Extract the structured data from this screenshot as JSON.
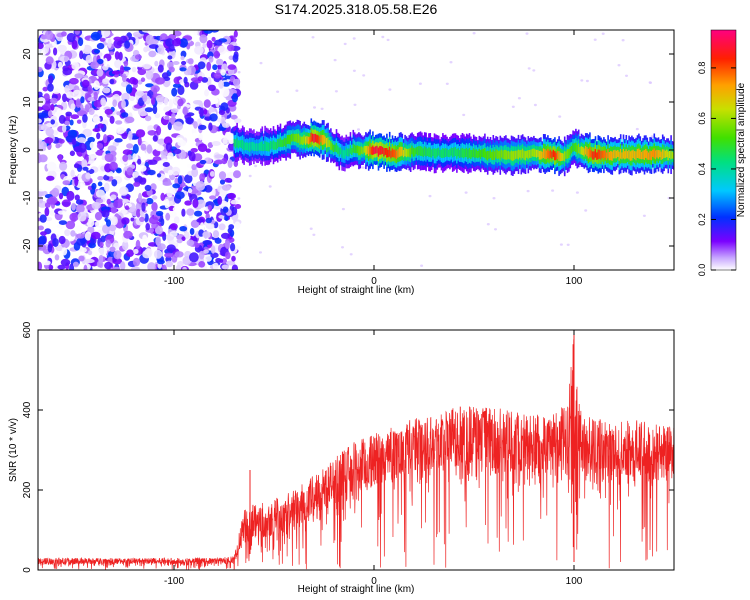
{
  "title": "S174.2025.318.05.58.E26",
  "chart_data": [
    {
      "type": "heatmap",
      "title": "",
      "xlabel": "Height of straight line (km)",
      "ylabel": "Frequency (Hz)",
      "xlim": [
        -168,
        150
      ],
      "ylim": [
        -25,
        25
      ],
      "xticks": [
        "-100",
        "0",
        "100"
      ],
      "xtick_values": [
        -100,
        0,
        100
      ],
      "yticks": [
        "20",
        "10",
        "0",
        "-10",
        "-20"
      ],
      "ytick_values": [
        20,
        10,
        0,
        -10,
        -20
      ],
      "colorbar": {
        "label": "Normalized spectral amplitude",
        "range": [
          0.0,
          0.95
        ],
        "ticks": [
          "0.0",
          "0.2",
          "0.4",
          "0.6",
          "0.8"
        ],
        "tick_values": [
          0.0,
          0.2,
          0.4,
          0.6,
          0.8
        ]
      },
      "noise_region_x": [
        -168,
        -68
      ],
      "signal_trace": {
        "x": [
          -70,
          -60,
          -50,
          -40,
          -35,
          -30,
          -25,
          -20,
          -15,
          -10,
          -5,
          0,
          10,
          20,
          30,
          40,
          50,
          60,
          70,
          80,
          90,
          95,
          100,
          110,
          120,
          130,
          140,
          150
        ],
        "frequency": [
          1.5,
          0.5,
          0.8,
          2.5,
          2.0,
          2.5,
          2.0,
          0.5,
          -0.8,
          0.2,
          0.0,
          0.0,
          -0.8,
          -0.2,
          -0.5,
          -0.5,
          -0.8,
          -1.0,
          -1.0,
          -0.8,
          -1.0,
          -1.5,
          0.5,
          -1.0,
          -1.0,
          -1.0,
          -1.0,
          -1.0
        ],
        "amplitude": [
          0.45,
          0.4,
          0.45,
          0.55,
          0.6,
          0.9,
          0.7,
          0.5,
          0.4,
          0.5,
          0.6,
          0.9,
          0.8,
          0.5,
          0.45,
          0.45,
          0.5,
          0.55,
          0.6,
          0.6,
          0.85,
          0.6,
          0.5,
          0.85,
          0.7,
          0.7,
          0.75,
          0.6
        ]
      }
    },
    {
      "type": "line",
      "title": "",
      "xlabel": "Height of straight line (km)",
      "ylabel": "SNR (10 * v/v)",
      "xlim": [
        -168,
        150
      ],
      "ylim": [
        0,
        600
      ],
      "xticks": [
        "-100",
        "0",
        "100"
      ],
      "xtick_values": [
        -100,
        0,
        100
      ],
      "yticks": [
        "600",
        "400",
        "200",
        "0"
      ],
      "ytick_values": [
        600,
        400,
        200,
        0
      ],
      "color": "#ee2222",
      "envelope": {
        "x": [
          -168,
          -140,
          -100,
          -80,
          -70,
          -65,
          -60,
          -50,
          -40,
          -30,
          -20,
          -10,
          0,
          10,
          20,
          30,
          40,
          50,
          60,
          70,
          80,
          90,
          97,
          100,
          103,
          110,
          120,
          130,
          140,
          150
        ],
        "low": [
          8,
          8,
          8,
          8,
          8,
          25,
          30,
          45,
          65,
          90,
          110,
          130,
          150,
          170,
          180,
          190,
          190,
          190,
          185,
          180,
          170,
          165,
          160,
          20,
          160,
          170,
          175,
          170,
          170,
          165
        ],
        "high": [
          30,
          30,
          30,
          30,
          35,
          150,
          170,
          180,
          200,
          240,
          280,
          320,
          340,
          360,
          380,
          395,
          410,
          415,
          405,
          400,
          390,
          390,
          420,
          600,
          400,
          380,
          370,
          375,
          375,
          360
        ]
      },
      "annotations": [
        {
          "x": -62,
          "y": 250,
          "text": ""
        },
        {
          "x": -12,
          "y": 360,
          "text": ""
        }
      ]
    }
  ]
}
